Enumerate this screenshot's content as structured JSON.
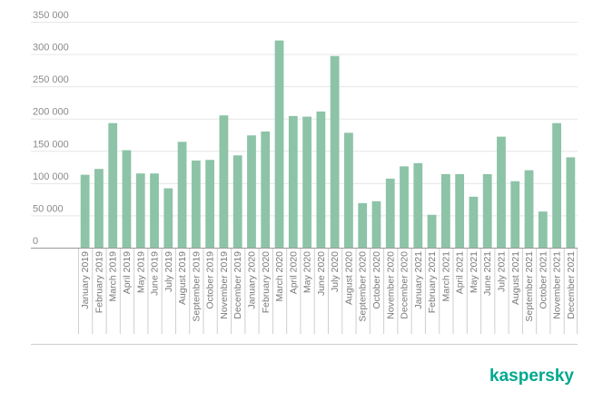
{
  "brand": {
    "logo_text": "kaspersky",
    "logo_color": "#00A88E"
  },
  "chart_data": {
    "type": "bar",
    "title": "",
    "xlabel": "",
    "ylabel": "",
    "bar_color": "#8DC3A7",
    "ylim": [
      0,
      350000
    ],
    "yticks": [
      0,
      50000,
      100000,
      150000,
      200000,
      250000,
      300000,
      350000
    ],
    "ytick_labels": [
      "0",
      "50 000",
      "100 000",
      "150 000",
      "200 000",
      "250 000",
      "300 000",
      "350 000"
    ],
    "grid": true,
    "categories": [
      "January 2019",
      "February 2019",
      "March 2019",
      "April 2019",
      "May 2019",
      "June 2019",
      "July 2019",
      "August 2019",
      "September 2019",
      "October 2019",
      "November 2019",
      "December 2019",
      "January 2020",
      "February 2020",
      "March 2020",
      "April 2020",
      "May 2020",
      "June 2020",
      "July 2020",
      "August 2020",
      "September 2020",
      "October 2020",
      "November 2020",
      "December 2020",
      "January 2021",
      "February 2021",
      "March 2021",
      "April 2021",
      "May 2021",
      "June 2021",
      "July 2021",
      "August 2021",
      "September 2021",
      "October 2021",
      "November 2021",
      "December 2021"
    ],
    "values": [
      113000,
      122000,
      193000,
      151000,
      115000,
      115000,
      92000,
      164000,
      135000,
      136000,
      205000,
      143000,
      174000,
      180000,
      321000,
      204000,
      203000,
      211000,
      297000,
      178000,
      69000,
      72000,
      107000,
      126000,
      131000,
      51000,
      114000,
      114000,
      79000,
      114000,
      172000,
      103000,
      120000,
      56000,
      193000,
      140000
    ]
  }
}
